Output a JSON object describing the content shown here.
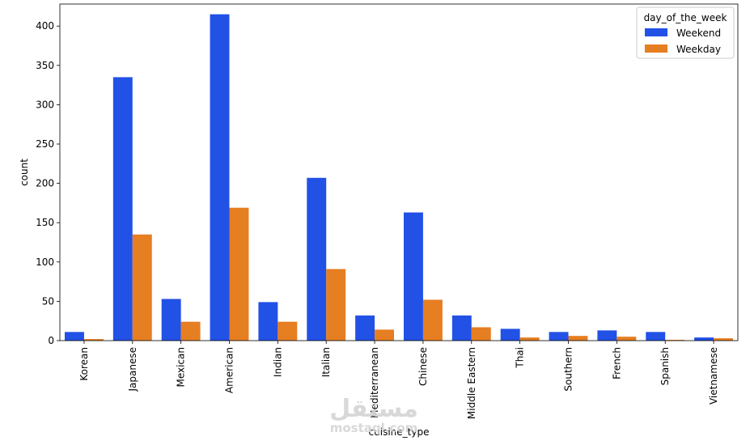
{
  "chart_data": {
    "type": "bar",
    "xlabel": "cuisine_type",
    "ylabel": "count",
    "ylim": [
      0,
      428
    ],
    "yticks": [
      0,
      50,
      100,
      150,
      200,
      250,
      300,
      350,
      400
    ],
    "categories": [
      "Korean",
      "Japanese",
      "Mexican",
      "American",
      "Indian",
      "Italian",
      "Mediterranean",
      "Chinese",
      "Middle Eastern",
      "Thai",
      "Southern",
      "French",
      "Spanish",
      "Vietnamese"
    ],
    "series": [
      {
        "name": "Weekend",
        "color": "#2251e6",
        "values": [
          11,
          335,
          53,
          415,
          49,
          207,
          32,
          163,
          32,
          15,
          11,
          13,
          11,
          4
        ]
      },
      {
        "name": "Weekday",
        "color": "#e67e22",
        "values": [
          2,
          135,
          24,
          169,
          24,
          91,
          14,
          52,
          17,
          4,
          6,
          5,
          1,
          3
        ]
      }
    ],
    "legend": {
      "title": "day_of_the_week",
      "placement": "top-right"
    },
    "grid": false
  },
  "watermark": {
    "arabic": "مستقل",
    "latin": "mostaql.com"
  }
}
